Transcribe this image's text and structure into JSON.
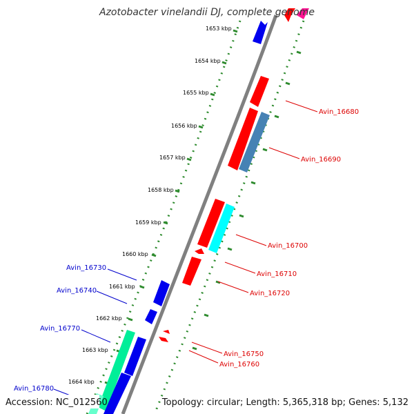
{
  "header": {
    "title": "Azotobacter vinelandii DJ, complete genome"
  },
  "footer": {
    "accession": "Accession: NC_012560",
    "topology": "Topology: circular; Length: 5,365,318 bp; Genes: 5,132"
  },
  "colors": {
    "backbone": "#808080",
    "tick_dots": "#2e8b2e",
    "tick_major": "#2e8b2e",
    "label_red": "#dd0000",
    "label_blue": "#0000cc",
    "gene_red": "#ff0000",
    "gene_blue": "#0000ee",
    "gene_steelblue": "#4682b4",
    "gene_cyan": "#00ffff",
    "gene_green": "#00ee99",
    "gene_magenta": "#ff1493"
  },
  "scale": {
    "unit": "kbp",
    "ticks": [
      {
        "label": "1653 kbp"
      },
      {
        "label": "1654 kbp"
      },
      {
        "label": "1655 kbp"
      },
      {
        "label": "1656 kbp"
      },
      {
        "label": "1657 kbp"
      },
      {
        "label": "1658 kbp"
      },
      {
        "label": "1659 kbp"
      },
      {
        "label": "1660 kbp"
      },
      {
        "label": "1661 kbp"
      },
      {
        "label": "1662 kbp"
      },
      {
        "label": "1663 kbp"
      },
      {
        "label": "1664 kbp"
      }
    ]
  },
  "gene_labels": [
    {
      "name": "Avin_16680",
      "color": "red"
    },
    {
      "name": "Avin_16690",
      "color": "red"
    },
    {
      "name": "Avin_16700",
      "color": "red"
    },
    {
      "name": "Avin_16710",
      "color": "red"
    },
    {
      "name": "Avin_16720",
      "color": "red"
    },
    {
      "name": "Avin_16730",
      "color": "blue"
    },
    {
      "name": "Avin_16740",
      "color": "blue"
    },
    {
      "name": "Avin_16750",
      "color": "red"
    },
    {
      "name": "Avin_16760",
      "color": "red"
    },
    {
      "name": "Avin_16770",
      "color": "blue"
    },
    {
      "name": "Avin_16780",
      "color": "blue"
    }
  ]
}
